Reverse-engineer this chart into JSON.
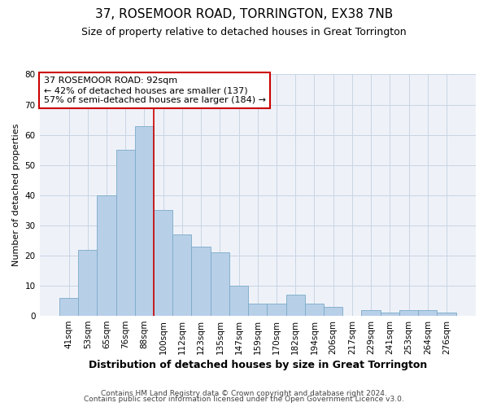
{
  "title1": "37, ROSEMOOR ROAD, TORRINGTON, EX38 7NB",
  "title2": "Size of property relative to detached houses in Great Torrington",
  "xlabel": "Distribution of detached houses by size in Great Torrington",
  "ylabel": "Number of detached properties",
  "categories": [
    "41sqm",
    "53sqm",
    "65sqm",
    "76sqm",
    "88sqm",
    "100sqm",
    "112sqm",
    "123sqm",
    "135sqm",
    "147sqm",
    "159sqm",
    "170sqm",
    "182sqm",
    "194sqm",
    "206sqm",
    "217sqm",
    "229sqm",
    "241sqm",
    "253sqm",
    "264sqm",
    "276sqm"
  ],
  "values": [
    6,
    22,
    40,
    55,
    63,
    35,
    27,
    23,
    21,
    10,
    4,
    4,
    7,
    4,
    3,
    0,
    2,
    1,
    2,
    2,
    1
  ],
  "bar_color": "#b8cfe8",
  "bar_edge_color": "#7aaac8",
  "vline_x": 4.5,
  "vline_color": "#cc0000",
  "annotation_text": "37 ROSEMOOR ROAD: 92sqm\n← 42% of detached houses are smaller (137)\n57% of semi-detached houses are larger (184) →",
  "annotation_box_color": "#ffffff",
  "annotation_box_edge": "#cc0000",
  "ylim": [
    0,
    80
  ],
  "yticks": [
    0,
    10,
    20,
    30,
    40,
    50,
    60,
    70,
    80
  ],
  "grid_color": "#c8d4e4",
  "background_color": "#eef2f8",
  "footer1": "Contains HM Land Registry data © Crown copyright and database right 2024.",
  "footer2": "Contains public sector information licensed under the Open Government Licence v3.0.",
  "title1_fontsize": 11,
  "title2_fontsize": 9,
  "xlabel_fontsize": 9,
  "ylabel_fontsize": 8,
  "tick_fontsize": 7.5,
  "annotation_fontsize": 8,
  "footer_fontsize": 6.5
}
